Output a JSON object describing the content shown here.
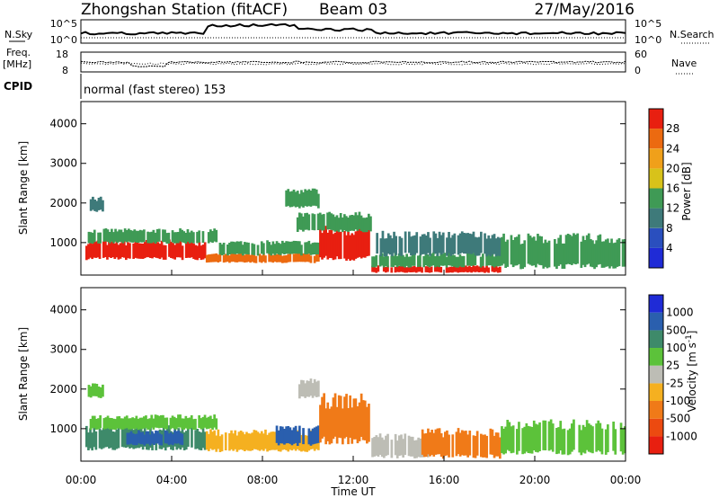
{
  "header": {
    "title": "Zhongshan Station (fitACF)",
    "beam": "Beam 03",
    "date": "27/May/2016"
  },
  "top_panels": {
    "nsky_label": "N.Sky",
    "nsky_ticks": [
      "10^5",
      "10^0"
    ],
    "nsearch_label": "N.Search",
    "nsearch_ticks": [
      "10^5",
      "10^0"
    ],
    "freq_label_1": "Freq.",
    "freq_label_2": "[MHz]",
    "freq_ticks": [
      "18",
      "8"
    ],
    "nave_label": "Nave",
    "nave_ticks": [
      "60",
      "0"
    ],
    "cpid_label": "CPID",
    "cpid_text": "normal (fast stereo) 153"
  },
  "chart_data": [
    {
      "type": "heatmap",
      "name": "power-panel",
      "ylabel": "Slant Range [km]",
      "ylim": [
        180,
        4560
      ],
      "yticks": [
        1000,
        2000,
        3000,
        4000
      ],
      "xlim": [
        0,
        24
      ],
      "colorbar": {
        "label": "Power [dB]",
        "levels": [
          {
            "lo": 0,
            "hi": 4,
            "color": "#1f2bd6"
          },
          {
            "lo": 4,
            "hi": 8,
            "color": "#2a4fbe"
          },
          {
            "lo": 8,
            "hi": 12,
            "color": "#3e7a7a"
          },
          {
            "lo": 12,
            "hi": 16,
            "color": "#3f9a55"
          },
          {
            "lo": 16,
            "hi": 20,
            "color": "#d8c21a"
          },
          {
            "lo": 20,
            "hi": 24,
            "color": "#f0a01a"
          },
          {
            "lo": 24,
            "hi": 28,
            "color": "#ec6a10"
          },
          {
            "lo": 28,
            "hi": 32,
            "color": "#e81f10"
          }
        ],
        "tick_labels": [
          "4",
          "8",
          "12",
          "16",
          "20",
          "24",
          "28"
        ]
      },
      "bands": [
        {
          "t0": 0.2,
          "t1": 5.5,
          "r0": 600,
          "r1": 1000,
          "level": 28
        },
        {
          "t0": 0.3,
          "t1": 6.0,
          "r0": 1000,
          "r1": 1300,
          "level": 14
        },
        {
          "t0": 5.5,
          "t1": 10.5,
          "r0": 500,
          "r1": 700,
          "level": 24
        },
        {
          "t0": 6.0,
          "t1": 10.5,
          "r0": 700,
          "r1": 1000,
          "level": 14
        },
        {
          "t0": 10.5,
          "t1": 12.8,
          "r0": 600,
          "r1": 1300,
          "level": 28
        },
        {
          "t0": 9.5,
          "t1": 12.8,
          "r0": 1300,
          "r1": 1700,
          "level": 14
        },
        {
          "t0": 12.8,
          "t1": 18.5,
          "r0": 250,
          "r1": 400,
          "level": 28
        },
        {
          "t0": 12.8,
          "t1": 18.5,
          "r0": 400,
          "r1": 700,
          "level": 14
        },
        {
          "t0": 13.0,
          "t1": 18.5,
          "r0": 700,
          "r1": 1200,
          "level": 8
        },
        {
          "t0": 18.5,
          "t1": 24.0,
          "r0": 400,
          "r1": 1100,
          "level": 12
        },
        {
          "t0": 0.3,
          "t1": 1.0,
          "r0": 1800,
          "r1": 2100,
          "level": 8
        },
        {
          "t0": 9.0,
          "t1": 10.5,
          "r0": 1900,
          "r1": 2300,
          "level": 12
        }
      ]
    },
    {
      "type": "heatmap",
      "name": "velocity-panel",
      "ylabel": "Slant Range [km]",
      "ylim": [
        180,
        4560
      ],
      "yticks": [
        1000,
        2000,
        3000,
        4000
      ],
      "xlim": [
        0,
        24
      ],
      "xticks": [
        "00:00",
        "04:00",
        "08:00",
        "12:00",
        "16:00",
        "20:00",
        "00:00"
      ],
      "xlabel": "Time UT",
      "colorbar": {
        "label": "Velocity [m s^-1]",
        "levels": [
          {
            "lo": -1500,
            "hi": -1000,
            "color": "#e81f10"
          },
          {
            "lo": -1000,
            "hi": -500,
            "color": "#ec4a10"
          },
          {
            "lo": -500,
            "hi": -100,
            "color": "#f07a18"
          },
          {
            "lo": -100,
            "hi": -25,
            "color": "#f5b020"
          },
          {
            "lo": -25,
            "hi": 25,
            "color": "#bdbdb5"
          },
          {
            "lo": 25,
            "hi": 100,
            "color": "#5cc23a"
          },
          {
            "lo": 100,
            "hi": 500,
            "color": "#3e8a6a"
          },
          {
            "lo": 500,
            "hi": 1000,
            "color": "#2a5fae"
          },
          {
            "lo": 1000,
            "hi": 1500,
            "color": "#1f2bd6"
          }
        ],
        "tick_labels": [
          "1000",
          "500",
          "100",
          "25",
          "-25",
          "-100",
          "-500",
          "-1000"
        ]
      },
      "bands": [
        {
          "t0": 0.2,
          "t1": 5.5,
          "r0": 500,
          "r1": 1000,
          "level": 300
        },
        {
          "t0": 2.0,
          "t1": 4.5,
          "r0": 600,
          "r1": 900,
          "level": 800
        },
        {
          "t0": 0.3,
          "t1": 6.0,
          "r0": 1000,
          "r1": 1300,
          "level": 60
        },
        {
          "t0": 5.5,
          "t1": 10.5,
          "r0": 450,
          "r1": 900,
          "level": -60
        },
        {
          "t0": 8.5,
          "t1": 10.5,
          "r0": 600,
          "r1": 1000,
          "level": 800
        },
        {
          "t0": 10.5,
          "t1": 12.8,
          "r0": 700,
          "r1": 1700,
          "level": -300
        },
        {
          "t0": 12.8,
          "t1": 15.5,
          "r0": 300,
          "r1": 800,
          "level": 0
        },
        {
          "t0": 15.0,
          "t1": 18.5,
          "r0": 300,
          "r1": 900,
          "level": -300
        },
        {
          "t0": 18.5,
          "t1": 24.0,
          "r0": 400,
          "r1": 1100,
          "level": 60
        },
        {
          "t0": 0.3,
          "t1": 1.0,
          "r0": 1800,
          "r1": 2100,
          "level": 60
        },
        {
          "t0": 9.5,
          "t1": 10.5,
          "r0": 1800,
          "r1": 2200,
          "level": 0
        }
      ]
    }
  ]
}
